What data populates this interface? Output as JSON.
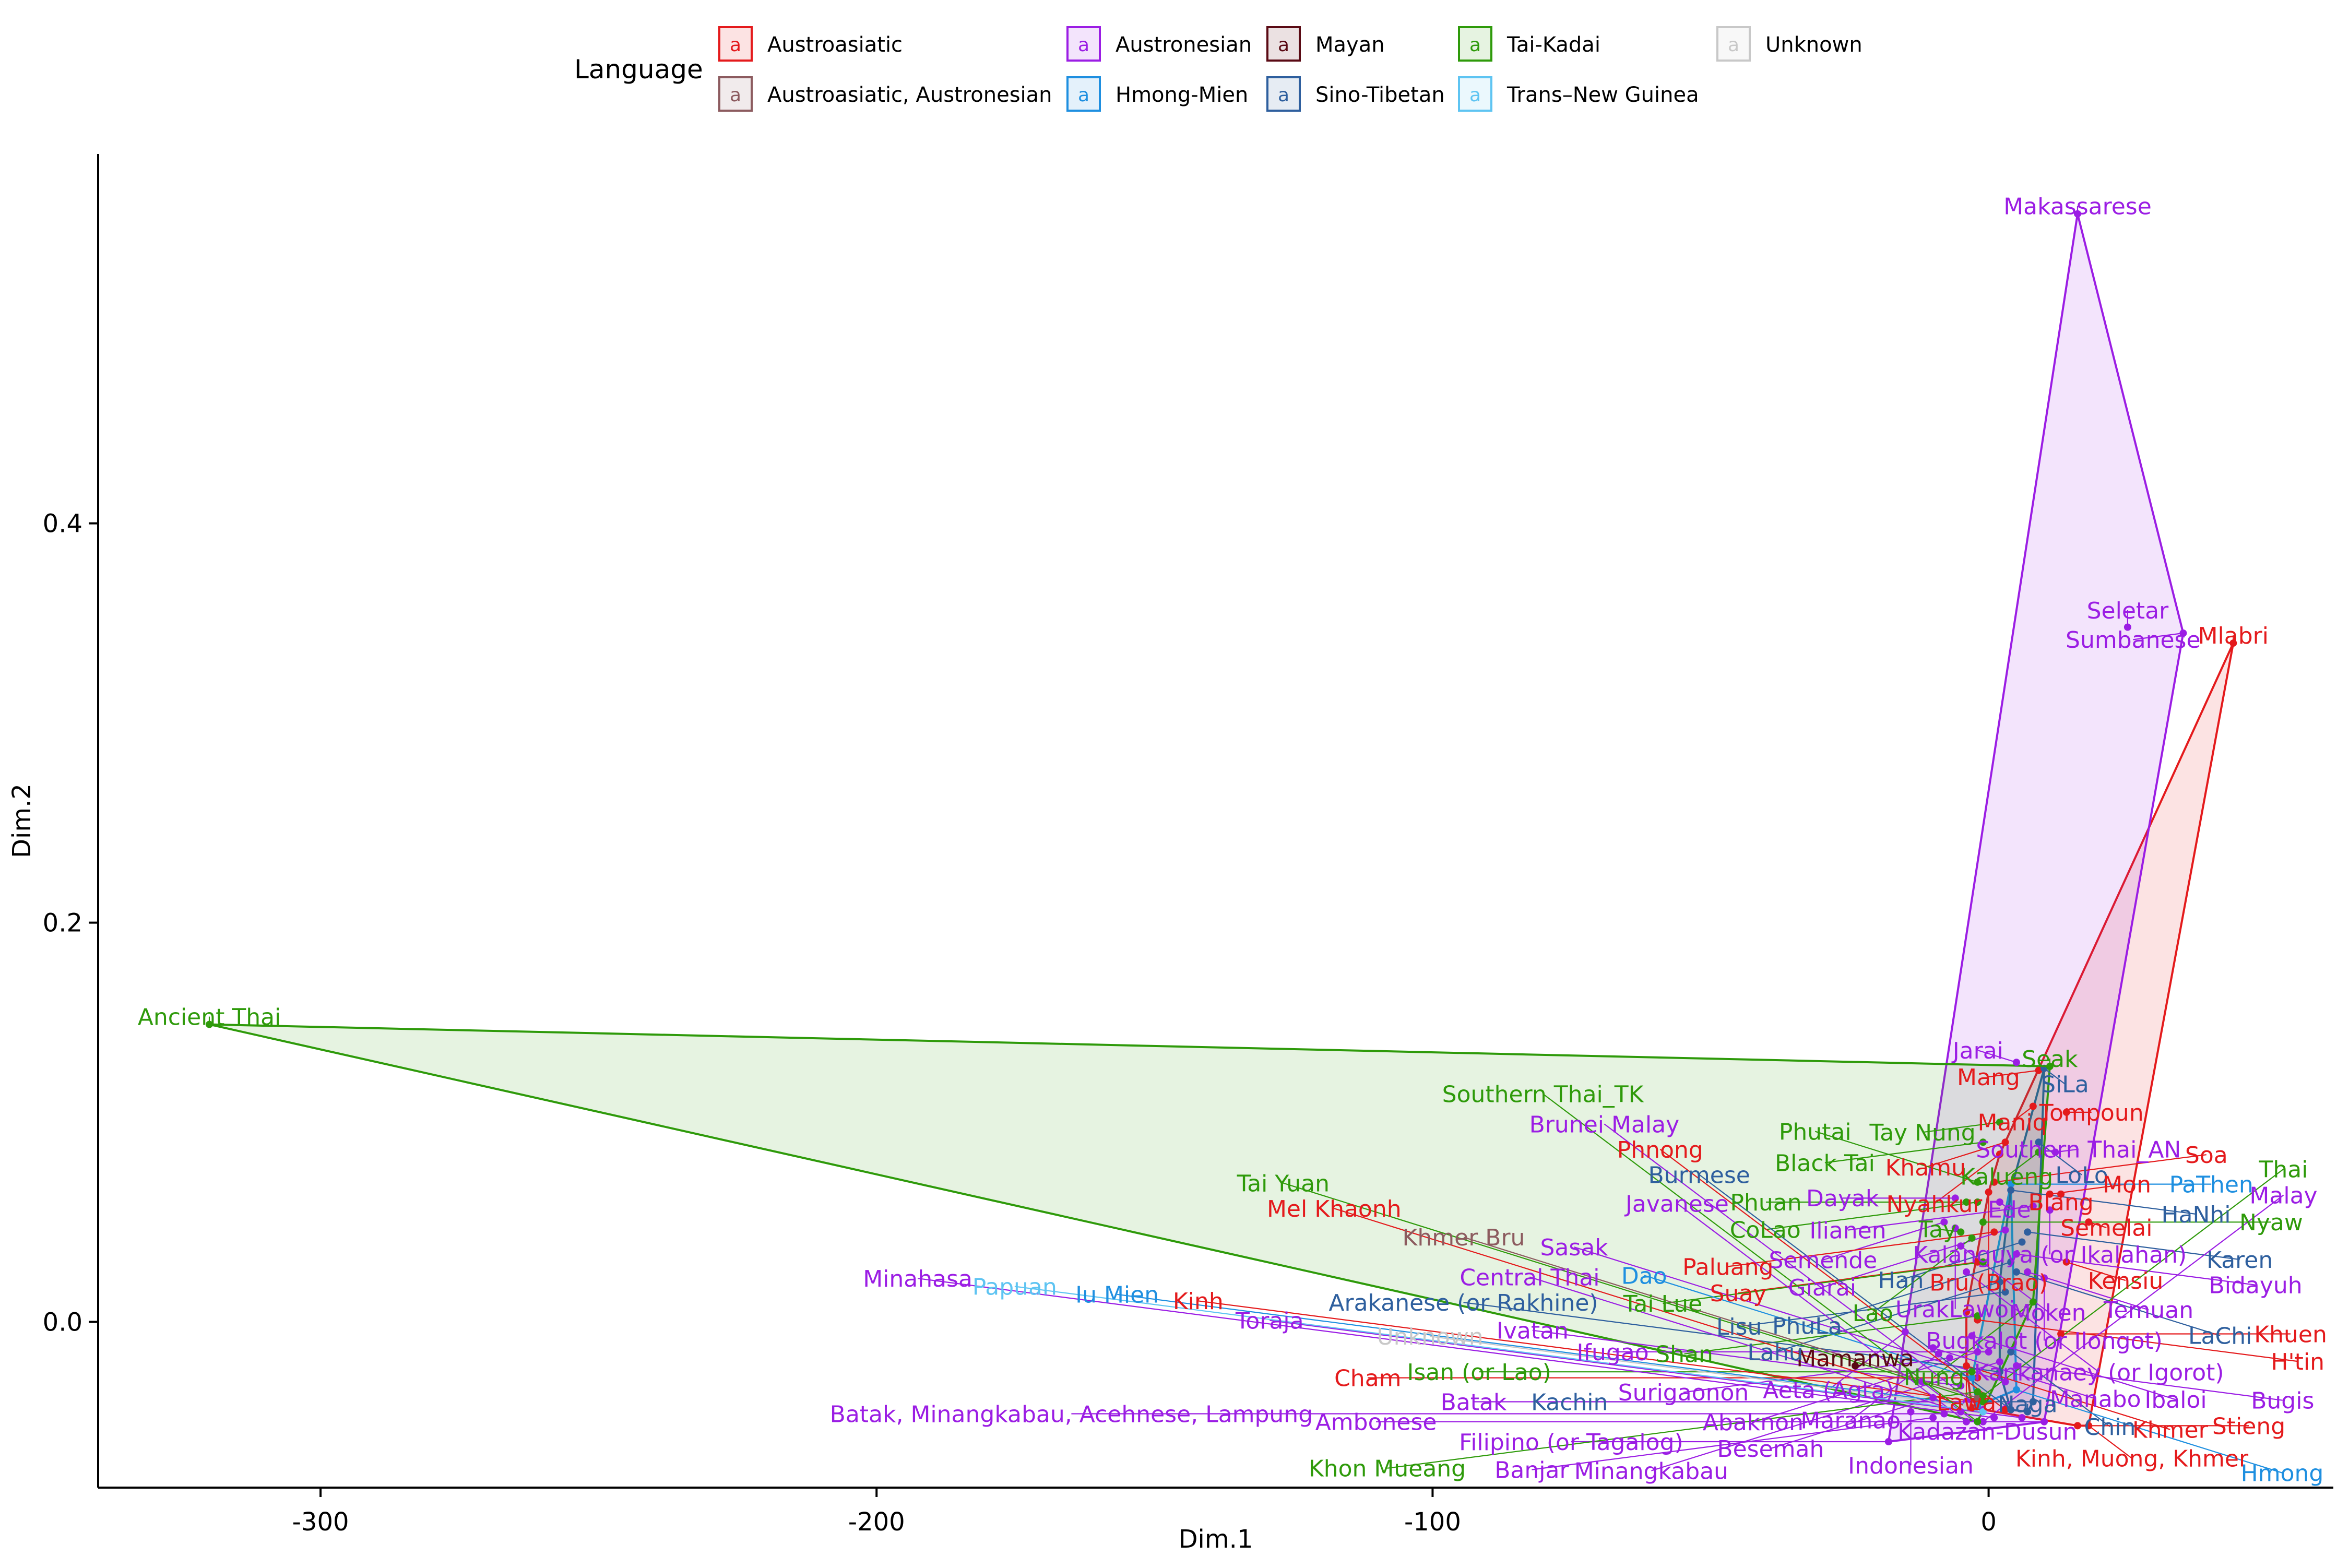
{
  "chart_data": {
    "type": "scatter",
    "title": "",
    "xlabel": "Dim.1",
    "ylabel": "Dim.2",
    "xlim": [
      -340,
      62
    ],
    "ylim": [
      -0.083,
      0.585
    ],
    "x_ticks": [
      -300,
      -200,
      -100,
      0
    ],
    "x_tick_labels": [
      "-300",
      "-200",
      "-100",
      "0"
    ],
    "y_ticks": [
      0.0,
      0.2,
      0.4
    ],
    "y_tick_labels": [
      "0.0",
      "0.2",
      "0.4"
    ],
    "grid": false,
    "legend_placement": "top",
    "legend": {
      "title": "Language",
      "glyph": "a",
      "entries": [
        {
          "name": "Austroasiatic",
          "color": "#E41A1C"
        },
        {
          "name": "Austroasiatic, Austronesian",
          "color": "#8C5B5F"
        },
        {
          "name": "Austronesian",
          "color": "#9B1DE4"
        },
        {
          "name": "Hmong-Mien",
          "color": "#1E8FE0"
        },
        {
          "name": "Mayan",
          "color": "#5A0A14"
        },
        {
          "name": "Sino-Tibetan",
          "color": "#2E5F9E"
        },
        {
          "name": "Tai-Kadai",
          "color": "#2E9A0A"
        },
        {
          "name": "Trans–New Guinea",
          "color": "#5EC4F2"
        },
        {
          "name": "Unknown",
          "color": "#C8C8C8"
        }
      ]
    },
    "series": [
      {
        "name": "Austroasiatic",
        "color": "#E41A1C",
        "hull": true,
        "points": [
          {
            "label": "Mlabri",
            "x": 44,
            "y": 0.34
          },
          {
            "label": "Mang",
            "x": 9,
            "y": 0.126
          },
          {
            "label": "Tompoun",
            "x": 14,
            "y": 0.105
          },
          {
            "label": "Maniq",
            "x": 8,
            "y": 0.108
          },
          {
            "label": "Khamu",
            "x": 3,
            "y": 0.09
          },
          {
            "label": "Nyahkur",
            "x": 2,
            "y": 0.084
          },
          {
            "label": "Soa",
            "x": 1,
            "y": 0.07
          },
          {
            "label": "Bru (Brao)",
            "x": 0,
            "y": 0.065
          },
          {
            "label": "Blang",
            "x": 13,
            "y": 0.064
          },
          {
            "label": "Paluang",
            "x": 1,
            "y": 0.045
          },
          {
            "label": "Mon",
            "x": 11,
            "y": 0.064
          },
          {
            "label": "Semelai",
            "x": 18,
            "y": 0.05
          },
          {
            "label": "Suay",
            "x": -2,
            "y": 0.03
          },
          {
            "label": "Kensiu",
            "x": 14,
            "y": 0.03
          },
          {
            "label": "Lawa",
            "x": -4,
            "y": 0.005
          },
          {
            "label": "H'tin",
            "x": -2,
            "y": 0.001
          },
          {
            "label": "Khuen",
            "x": 13,
            "y": -0.006
          },
          {
            "label": "Khmer",
            "x": -4,
            "y": -0.022
          },
          {
            "label": "Cham",
            "x": -2,
            "y": -0.028
          },
          {
            "label": "Kinh",
            "x": -2,
            "y": -0.04
          },
          {
            "label": "Kinh, Muong, Khmer",
            "x": 18,
            "y": -0.052
          },
          {
            "label": "Mel Khaonh",
            "x": -3,
            "y": -0.043
          },
          {
            "label": "Phnong",
            "x": 3,
            "y": -0.044
          },
          {
            "label": "Stieng",
            "x": 16,
            "y": -0.052
          }
        ]
      },
      {
        "name": "Austroasiatic, Austronesian",
        "color": "#8C5B5F",
        "hull": false,
        "points": [
          {
            "label": "Khmer Bru",
            "x": -2,
            "y": -0.038
          }
        ]
      },
      {
        "name": "Austronesian",
        "color": "#9B1DE4",
        "hull": true,
        "points": [
          {
            "label": "Makassarese",
            "x": 16,
            "y": 0.555
          },
          {
            "label": "Seletar",
            "x": 25,
            "y": 0.348
          },
          {
            "label": "Sumbanese",
            "x": 35,
            "y": 0.345
          },
          {
            "label": "Jarai",
            "x": 5,
            "y": 0.13
          },
          {
            "label": "Southern Thai_AN",
            "x": 12,
            "y": 0.085
          },
          {
            "label": "Dayak",
            "x": -6,
            "y": 0.062
          },
          {
            "label": "Ede",
            "x": 2,
            "y": 0.06
          },
          {
            "label": "Ilianen",
            "x": 8,
            "y": 0.058
          },
          {
            "label": "Kalanguya (or Ikalahan)",
            "x": 11,
            "y": 0.056
          },
          {
            "label": "Semende",
            "x": -8,
            "y": 0.05
          },
          {
            "label": "UrakLawoi",
            "x": -6,
            "y": 0.047
          },
          {
            "label": "Giarai",
            "x": 3,
            "y": 0.046
          },
          {
            "label": "Moken",
            "x": -5,
            "y": 0.038
          },
          {
            "label": "Bidayuh",
            "x": 5,
            "y": 0.034
          },
          {
            "label": "Kankanaey (or Igorot)",
            "x": -4,
            "y": 0.025
          },
          {
            "label": "Temuan",
            "x": 7,
            "y": 0.025
          },
          {
            "label": "Bugkalot (or Ilongot)",
            "x": 10,
            "y": 0.022
          },
          {
            "label": "Aeta (Agta)",
            "x": -15,
            "y": -0.005
          },
          {
            "label": "Ibaloi",
            "x": -3,
            "y": -0.007
          },
          {
            "label": "Manabo",
            "x": -10,
            "y": -0.013
          },
          {
            "label": "Maranao",
            "x": -9,
            "y": -0.016
          },
          {
            "label": "Surigaonon",
            "x": -7,
            "y": -0.018
          },
          {
            "label": "Abaknon",
            "x": -2,
            "y": -0.015
          },
          {
            "label": "Ifugao",
            "x": 0,
            "y": -0.015
          },
          {
            "label": "Minangkabau",
            "x": 2,
            "y": -0.02
          },
          {
            "label": "Bugis",
            "x": 5,
            "y": -0.022
          },
          {
            "label": "Kadazan-Dusun",
            "x": -12,
            "y": -0.03
          },
          {
            "label": "Ivatan",
            "x": -5,
            "y": -0.032
          },
          {
            "label": "Sasak",
            "x": 3,
            "y": -0.03
          },
          {
            "label": "Besemah",
            "x": -10,
            "y": -0.038
          },
          {
            "label": "Batak",
            "x": -4,
            "y": -0.04
          },
          {
            "label": "Indonesian",
            "x": -14,
            "y": -0.045
          },
          {
            "label": "Banjar",
            "x": -10,
            "y": -0.048
          },
          {
            "label": "Batak, Minangkabau, Acehnese, Lampung",
            "x": -8,
            "y": -0.046
          },
          {
            "label": "Central Thai",
            "x": -5,
            "y": -0.045
          },
          {
            "label": "Brunei Malay",
            "x": -1,
            "y": -0.044
          },
          {
            "label": "Filipino (or Tagalog)",
            "x": -18,
            "y": -0.06
          },
          {
            "label": "Javanese",
            "x": -4,
            "y": -0.05
          },
          {
            "label": "Malay",
            "x": -1,
            "y": -0.05
          },
          {
            "label": "Minahasa",
            "x": 1,
            "y": -0.048
          },
          {
            "label": "Toraja",
            "x": 6,
            "y": -0.048
          },
          {
            "label": "Ambonese",
            "x": 10,
            "y": -0.05
          }
        ]
      },
      {
        "name": "Hmong-Mien",
        "color": "#1E8FE0",
        "hull": true,
        "points": [
          {
            "label": "PaThen",
            "x": 4,
            "y": 0.069
          },
          {
            "label": "Dao",
            "x": -3,
            "y": -0.028
          },
          {
            "label": "Hmong",
            "x": 5,
            "y": -0.034
          },
          {
            "label": "Iu Mien",
            "x": -2,
            "y": -0.042
          }
        ]
      },
      {
        "name": "Mayan",
        "color": "#5A0A14",
        "hull": false,
        "points": [
          {
            "label": "Mamanwa",
            "x": -24,
            "y": -0.022
          }
        ]
      },
      {
        "name": "Sino-Tibetan",
        "color": "#2E5F9E",
        "hull": true,
        "points": [
          {
            "label": "SiLa",
            "x": 10,
            "y": 0.127
          },
          {
            "label": "LoLo",
            "x": 9,
            "y": 0.09
          },
          {
            "label": "HaNhi",
            "x": 4,
            "y": 0.066
          },
          {
            "label": "Karen",
            "x": 7,
            "y": 0.045
          },
          {
            "label": "Han",
            "x": 6,
            "y": 0.04
          },
          {
            "label": "PhuLa",
            "x": 4,
            "y": 0.03
          },
          {
            "label": "LaChi",
            "x": 5,
            "y": 0.025
          },
          {
            "label": "Lahu",
            "x": 2,
            "y": 0.02
          },
          {
            "label": "Lisu",
            "x": 3,
            "y": 0.015
          },
          {
            "label": "Chin",
            "x": 4,
            "y": -0.015
          },
          {
            "label": "Arakanese (or Rakhine)",
            "x": 2,
            "y": -0.025
          },
          {
            "label": "Kachin",
            "x": 8,
            "y": -0.04
          },
          {
            "label": "Naga",
            "x": 7,
            "y": -0.045
          },
          {
            "label": "Burmese",
            "x": 4,
            "y": -0.044
          }
        ]
      },
      {
        "name": "Tai-Kadai",
        "color": "#2E9A0A",
        "hull": true,
        "points": [
          {
            "label": "Ancient Thai",
            "x": -320,
            "y": 0.149
          },
          {
            "label": "Seak",
            "x": 11,
            "y": 0.128
          },
          {
            "label": "Tay Nung",
            "x": 2,
            "y": 0.1
          },
          {
            "label": "Kalueng",
            "x": 9,
            "y": 0.085
          },
          {
            "label": "Black Tai",
            "x": -1,
            "y": 0.09
          },
          {
            "label": "Phutai",
            "x": -2,
            "y": 0.07
          },
          {
            "label": "Phuan",
            "x": -4,
            "y": 0.06
          },
          {
            "label": "CoLao",
            "x": -2,
            "y": 0.06
          },
          {
            "label": "Nyaw",
            "x": -1,
            "y": 0.05
          },
          {
            "label": "Tay",
            "x": -5,
            "y": 0.045
          },
          {
            "label": "Lao",
            "x": -3,
            "y": 0.042
          },
          {
            "label": "Tai Lue",
            "x": -1,
            "y": 0.03
          },
          {
            "label": "Nung",
            "x": 8,
            "y": 0.01
          },
          {
            "label": "Shan",
            "x": -2,
            "y": 0.003
          },
          {
            "label": "Isan (or Lao)",
            "x": -3,
            "y": -0.025
          },
          {
            "label": "Khon Mueang",
            "x": -2,
            "y": -0.035
          },
          {
            "label": "Thai",
            "x": -1,
            "y": -0.037
          },
          {
            "label": "Tai Yuan",
            "x": -1,
            "y": -0.04
          },
          {
            "label": "Southern Thai_TK",
            "x": -2,
            "y": -0.05
          }
        ]
      },
      {
        "name": "Trans–New Guinea",
        "color": "#5EC4F2",
        "hull": false,
        "points": [
          {
            "label": "Papuan",
            "x": -1,
            "y": -0.045
          }
        ]
      },
      {
        "name": "Unknown",
        "color": "#C8C8C8",
        "hull": false,
        "points": [
          {
            "label": "Unknown",
            "x": -4,
            "y": -0.042
          }
        ]
      }
    ]
  }
}
